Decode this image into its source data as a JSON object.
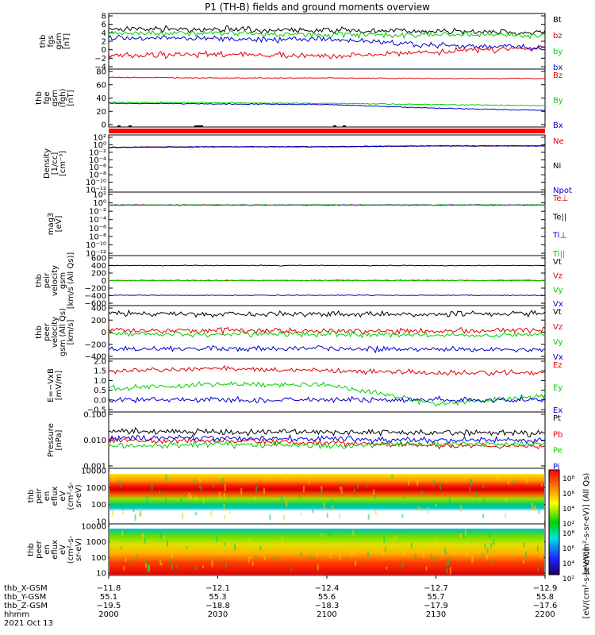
{
  "title": "P1 (TH-B) fields and ground moments overview",
  "colors": {
    "black": "#000000",
    "red": "#e00000",
    "green": "#00d000",
    "blue": "#0000d0"
  },
  "panels": [
    {
      "id": "fgs",
      "ylabel": [
        "thb",
        "fgs",
        "gsm",
        "[nT]"
      ],
      "yticks": [
        "8",
        "6",
        "4",
        "2",
        "0",
        "−2",
        "−4"
      ],
      "legend": [
        {
          "text": "Bt",
          "color": "black"
        },
        {
          "text": "bz",
          "color": "red"
        },
        {
          "text": "by",
          "color": "green"
        },
        {
          "text": "bx",
          "color": "blue"
        }
      ]
    },
    {
      "id": "fge",
      "ylabel": [
        "thb",
        "fge",
        "gsm",
        "(fgh)",
        "[nT]"
      ],
      "yticks": [
        "80",
        "60",
        "40",
        "20",
        "0"
      ],
      "legend": [
        {
          "text": "Bz",
          "color": "red"
        },
        {
          "text": "By",
          "color": "green"
        },
        {
          "text": "Bx",
          "color": "blue"
        }
      ]
    },
    {
      "id": "density",
      "ylabel": [
        "Density",
        "[1/cc]",
        "[cm⁻³]"
      ],
      "yticks": [
        "10²",
        "10⁰",
        "10⁻²",
        "10⁻⁴",
        "10⁻⁶",
        "10⁻⁸",
        "10⁻¹⁰",
        "10⁻¹²"
      ],
      "legend": [
        {
          "text": "Ne",
          "color": "red"
        },
        {
          "text": "Ni",
          "color": "black"
        },
        {
          "text": "Npot",
          "color": "blue"
        }
      ]
    },
    {
      "id": "temp",
      "ylabel": [
        "mag3",
        "[eV]"
      ],
      "yticks": [
        "10²",
        "10⁰",
        "10⁻²",
        "10⁻⁴",
        "10⁻⁶",
        "10⁻⁸",
        "10⁻¹⁰",
        "10⁻¹²"
      ],
      "legend": [
        {
          "text": "Te⊥",
          "color": "red"
        },
        {
          "text": "Te||",
          "color": "black"
        },
        {
          "text": "Ti⊥",
          "color": "blue"
        },
        {
          "text": "Ti||",
          "color": "green"
        }
      ]
    },
    {
      "id": "vi",
      "ylabel": [
        "thb",
        "peir",
        "velocity",
        "gsm",
        "[km/s (All Qs)]"
      ],
      "yticks": [
        "600",
        "400",
        "200",
        "0",
        "−200",
        "−400",
        "−600"
      ],
      "legend": [
        {
          "text": "Vt",
          "color": "black"
        },
        {
          "text": "Vz",
          "color": "red"
        },
        {
          "text": "Vy",
          "color": "green"
        },
        {
          "text": "Vx",
          "color": "blue"
        }
      ]
    },
    {
      "id": "ve",
      "ylabel": [
        "thb",
        "peer",
        "velocity",
        "gsm (All Qs)",
        "[km/s]"
      ],
      "yticks": [
        "400",
        "200",
        "0",
        "−200",
        "−400"
      ],
      "legend": [
        {
          "text": "Vt",
          "color": "black"
        },
        {
          "text": "Vz",
          "color": "red"
        },
        {
          "text": "Vy",
          "color": "green"
        },
        {
          "text": "Vx",
          "color": "blue"
        }
      ]
    },
    {
      "id": "efield",
      "ylabel": [
        "E=−VxB",
        "[mV/m]"
      ],
      "yticks": [
        "2.0",
        "1.5",
        "1.0",
        "0.5",
        "0.0",
        "−0.5"
      ],
      "legend": [
        {
          "text": "Ez",
          "color": "red"
        },
        {
          "text": "Ey",
          "color": "green"
        },
        {
          "text": "Ex",
          "color": "blue"
        }
      ]
    },
    {
      "id": "pressure",
      "ylabel": [
        "Pressure",
        "[nPa]"
      ],
      "yticks": [
        "0.100",
        "0.010",
        "0.001"
      ],
      "legend": [
        {
          "text": "Pt",
          "color": "black"
        },
        {
          "text": "Pb",
          "color": "red"
        },
        {
          "text": "Pe",
          "color": "green"
        },
        {
          "text": "Pi",
          "color": "blue"
        }
      ]
    },
    {
      "id": "ion_spec",
      "ylabel": [
        "thb",
        "peir",
        "en",
        "eflux",
        "eV",
        "(cm²-s-",
        "sr-eV)"
      ],
      "yticks": [
        "10000",
        "1000",
        "100",
        "10"
      ],
      "legend": []
    },
    {
      "id": "elec_spec",
      "ylabel": [
        "thb",
        "peer",
        "en",
        "eflux",
        "eV",
        "(cm²-s-",
        "sr-eV)"
      ],
      "yticks": [
        "10000",
        "1000",
        "100",
        "10"
      ],
      "legend": []
    }
  ],
  "colorbar": {
    "ticks": [
      "10⁸",
      "10⁶",
      "10⁴",
      "10²"
    ],
    "label_top": "[eV/(cm²-s-sr-eV)] (All Qs)",
    "label_bottom": "[eV/(cm²-s-sr-eV)]"
  },
  "bottom_axis": {
    "row_labels": [
      "thb_X-GSM",
      "thb_Y-GSM",
      "thb_Z-GSM",
      "hhmm"
    ],
    "columns": [
      [
        "−11.8",
        "55.1",
        "−19.5",
        "2000"
      ],
      [
        "−12.1",
        "55.3",
        "−18.8",
        "2030"
      ],
      [
        "−12.4",
        "55.6",
        "−18.3",
        "2100"
      ],
      [
        "−12.7",
        "55.7",
        "−17.9",
        "2130"
      ],
      [
        "−12.9",
        "55.8",
        "−17.6",
        "2200"
      ]
    ],
    "date": "2021 Oct 13"
  },
  "chart_data": {
    "type": "line",
    "title": "P1 (TH-B) fields and ground moments overview",
    "x": [
      "2000",
      "2030",
      "2100",
      "2130",
      "2200"
    ],
    "xlabel": "hhmm",
    "date": "2021 Oct 13",
    "panels": [
      {
        "id": "fgs",
        "ylim": [
          -4,
          8
        ],
        "series": [
          {
            "name": "Bt",
            "color": "black",
            "values": [
              5.0,
              4.8,
              4.6,
              4.4,
              4.0
            ]
          },
          {
            "name": "bz",
            "color": "red",
            "values": [
              -1.5,
              -1.0,
              -1.5,
              -0.5,
              0.5
            ]
          },
          {
            "name": "by",
            "color": "green",
            "values": [
              4.0,
              4.0,
              3.5,
              3.5,
              3.5
            ]
          },
          {
            "name": "bx",
            "color": "blue",
            "values": [
              3.0,
              2.5,
              2.5,
              1.0,
              0.5
            ]
          }
        ]
      },
      {
        "id": "fge",
        "ylim": [
          -10,
          80
        ],
        "series": [
          {
            "name": "Bz",
            "color": "red",
            "values": [
              70,
              69,
              69,
              68,
              68
            ]
          },
          {
            "name": "By",
            "color": "green",
            "values": [
              28,
              27,
              26,
              24,
              22
            ]
          },
          {
            "name": "Bx",
            "color": "blue",
            "values": [
              26,
              25,
              24,
              18,
              14
            ]
          }
        ]
      },
      {
        "id": "density",
        "scale": "log",
        "ylim": [
          -12,
          2
        ],
        "series": [
          {
            "name": "Ne",
            "color": "red",
            "values": [
              0.2,
              0.3,
              0.3,
              0.5,
              0.5
            ]
          },
          {
            "name": "Ni",
            "color": "black",
            "values": [
              0.2,
              0.3,
              0.3,
              0.5,
              0.5
            ]
          },
          {
            "name": "Npot",
            "color": "blue",
            "values": [
              0.2,
              0.3,
              0.3,
              0.5,
              0.5
            ]
          }
        ]
      },
      {
        "id": "temp",
        "scale": "log",
        "ylim": [
          -12,
          2
        ],
        "series": [
          {
            "name": "Te⊥",
            "color": "red",
            "values": [
              0.3,
              0.3,
              0.3,
              0.3,
              0.3
            ]
          },
          {
            "name": "Te||",
            "color": "black",
            "values": [
              0.3,
              0.3,
              0.3,
              0.3,
              0.3
            ]
          },
          {
            "name": "Ti⊥",
            "color": "blue",
            "values": [
              0.3,
              0.3,
              0.3,
              0.3,
              0.3
            ]
          },
          {
            "name": "Ti||",
            "color": "green",
            "values": [
              0.3,
              0.3,
              0.3,
              0.3,
              0.3
            ]
          }
        ]
      },
      {
        "id": "vi",
        "ylim": [
          -600,
          600
        ],
        "series": [
          {
            "name": "Vt",
            "color": "black",
            "values": [
              400,
              400,
              400,
              400,
              400
            ]
          },
          {
            "name": "Vz",
            "color": "red",
            "values": [
              5,
              5,
              5,
              5,
              5
            ]
          },
          {
            "name": "Vy",
            "color": "green",
            "values": [
              0,
              0,
              0,
              0,
              0
            ]
          },
          {
            "name": "Vx",
            "color": "blue",
            "values": [
              -390,
              -390,
              -390,
              -390,
              -390
            ]
          }
        ]
      },
      {
        "id": "ve",
        "ylim": [
          -400,
          400
        ],
        "series": [
          {
            "name": "Vt",
            "color": "black",
            "values": [
              310,
              300,
              300,
              300,
              310
            ]
          },
          {
            "name": "Vz",
            "color": "red",
            "values": [
              30,
              30,
              20,
              20,
              40
            ]
          },
          {
            "name": "Vy",
            "color": "green",
            "values": [
              -30,
              -30,
              -30,
              -50,
              -40
            ]
          },
          {
            "name": "Vx",
            "color": "blue",
            "values": [
              -280,
              -280,
              -270,
              -280,
              -290
            ]
          }
        ]
      },
      {
        "id": "efield",
        "ylim": [
          -0.5,
          2.0
        ],
        "series": [
          {
            "name": "Ez",
            "color": "red",
            "values": [
              1.5,
              1.6,
              1.5,
              1.4,
              1.4
            ]
          },
          {
            "name": "Ey",
            "color": "green",
            "values": [
              0.6,
              0.8,
              0.8,
              -0.2,
              0.2
            ]
          },
          {
            "name": "Ex",
            "color": "blue",
            "values": [
              0.0,
              0.0,
              0.0,
              0.0,
              0.0
            ]
          }
        ]
      },
      {
        "id": "pressure",
        "scale": "log",
        "ylim": [
          0.001,
          0.1
        ],
        "series": [
          {
            "name": "Pt",
            "color": "black",
            "values": [
              0.022,
              0.021,
              0.02,
              0.019,
              0.018
            ]
          },
          {
            "name": "Pb",
            "color": "red",
            "values": [
              0.01,
              0.009,
              0.008,
              0.006,
              0.006
            ]
          },
          {
            "name": "Pe",
            "color": "green",
            "values": [
              0.006,
              0.007,
              0.006,
              0.007,
              0.007
            ]
          },
          {
            "name": "Pi",
            "color": "blue",
            "values": [
              0.012,
              0.012,
              0.011,
              0.01,
              0.01
            ]
          }
        ]
      }
    ],
    "spectrograms": [
      {
        "id": "ion_spec",
        "scale": "log",
        "ylim": [
          5,
          20000
        ],
        "peak_energy_eV": [
          800,
          800,
          800,
          800,
          800
        ]
      },
      {
        "id": "elec_spec",
        "scale": "log",
        "ylim": [
          5,
          20000
        ],
        "peak_energy_eV": [
          10,
          10,
          10,
          10,
          10
        ]
      }
    ]
  }
}
